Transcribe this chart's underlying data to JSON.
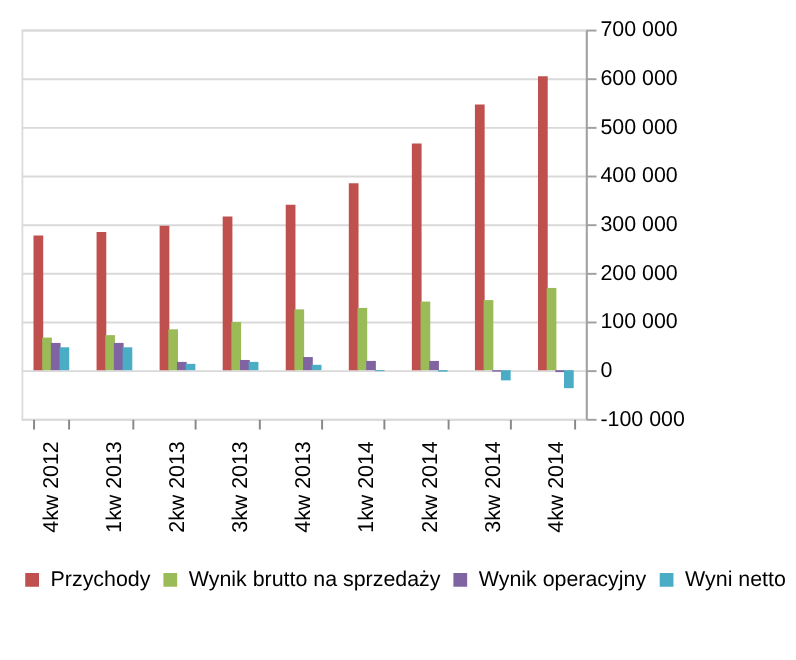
{
  "chart_data": {
    "type": "bar",
    "categories": [
      "4kw 2012",
      "1kw 2013",
      "2kw 2013",
      "3kw 2013",
      "4kw 2013",
      "1kw 2014",
      "2kw 2014",
      "3kw 2014",
      "4kw 2014"
    ],
    "series": [
      {
        "name": "Przychody",
        "color": "#c0504d",
        "values": [
          277000,
          284000,
          297000,
          316000,
          340000,
          384000,
          466000,
          546000,
          604000
        ]
      },
      {
        "name": "Wynik brutto na sprzedaży",
        "color": "#9bbb59",
        "values": [
          67000,
          72000,
          84000,
          99000,
          125000,
          128000,
          141000,
          144000,
          169000
        ]
      },
      {
        "name": "Wynik operacyjny",
        "color": "#8064a2",
        "values": [
          56000,
          56000,
          17000,
          21000,
          27000,
          19000,
          19000,
          -3000,
          -4000
        ]
      },
      {
        "name": "Wyni netto",
        "color": "#4bacc6",
        "values": [
          47000,
          47000,
          13000,
          17000,
          11000,
          -2000,
          -3000,
          -21000,
          -37000
        ]
      }
    ],
    "ylim": [
      -100000,
      700000
    ],
    "yticks": [
      {
        "value": -100000,
        "label": "-100 000"
      },
      {
        "value": 0,
        "label": "0"
      },
      {
        "value": 100000,
        "label": "100 000"
      },
      {
        "value": 200000,
        "label": "200 000"
      },
      {
        "value": 300000,
        "label": "300 000"
      },
      {
        "value": 400000,
        "label": "400 000"
      },
      {
        "value": 500000,
        "label": "500 000"
      },
      {
        "value": 600000,
        "label": "600 000"
      },
      {
        "value": 700000,
        "label": "700 000"
      }
    ],
    "grid": "y",
    "legend": "bottom"
  }
}
